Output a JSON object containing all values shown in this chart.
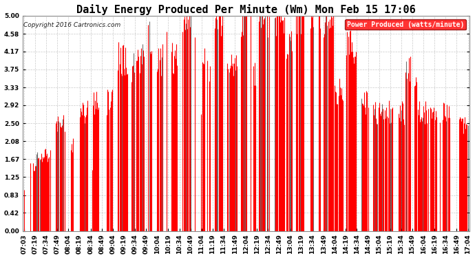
{
  "title": "Daily Energy Produced Per Minute (Wm) Mon Feb 15 17:06",
  "copyright": "Copyright 2016 Cartronics.com",
  "legend_label": "Power Produced (watts/minute)",
  "ylim": [
    0.0,
    5.0
  ],
  "yticks": [
    0.0,
    0.42,
    0.83,
    1.25,
    1.67,
    2.08,
    2.5,
    2.92,
    3.33,
    3.75,
    4.17,
    4.58,
    5.0
  ],
  "bar_color": "#FF0000",
  "dark_color": "#333333",
  "background_color": "#FFFFFF",
  "grid_color": "#BBBBBB",
  "title_fontsize": 11,
  "tick_fontsize": 6.5,
  "x_labels": [
    "07:03",
    "07:19",
    "07:34",
    "07:49",
    "08:04",
    "08:19",
    "08:34",
    "08:49",
    "09:04",
    "09:19",
    "09:34",
    "09:49",
    "10:04",
    "10:19",
    "10:34",
    "10:49",
    "11:04",
    "11:19",
    "11:34",
    "11:49",
    "12:04",
    "12:19",
    "12:34",
    "12:49",
    "13:04",
    "13:19",
    "13:34",
    "13:49",
    "14:04",
    "14:19",
    "14:34",
    "14:49",
    "15:04",
    "15:19",
    "15:34",
    "15:49",
    "16:04",
    "16:19",
    "16:34",
    "16:49",
    "17:04"
  ],
  "n_labels": 41,
  "total_minutes": 601
}
